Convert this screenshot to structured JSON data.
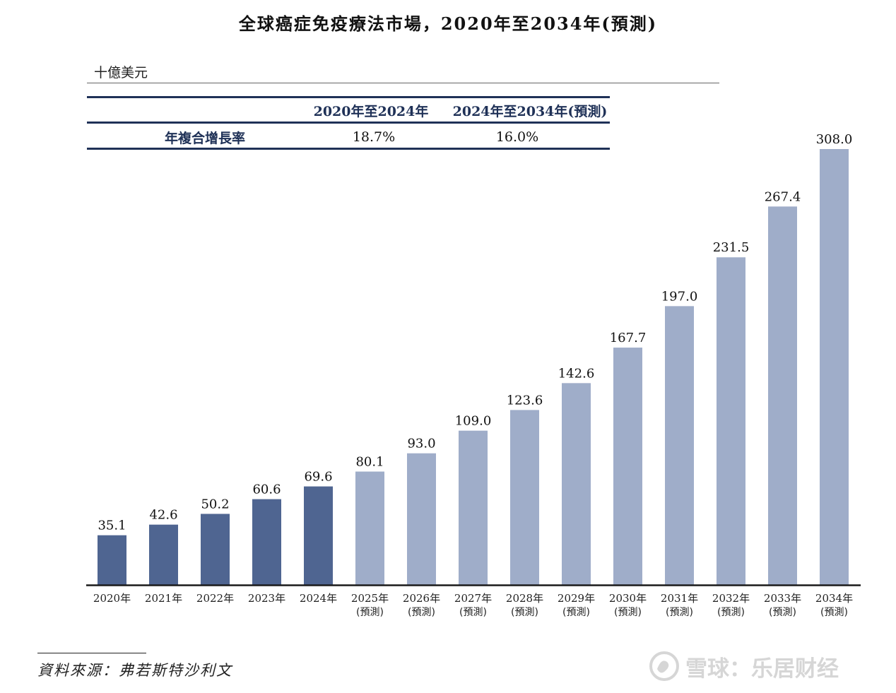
{
  "title": "全球癌症免疫療法市場，2020年至2034年(預測)",
  "unit": "十億美元",
  "cagr_table": {
    "headers": [
      "2020年至2024年",
      "2024年至2034年(預測)"
    ],
    "row_label": "年複合增長率",
    "values": [
      "18.7%",
      "16.0%"
    ]
  },
  "chart_data": {
    "type": "bar",
    "title": "全球癌症免疫療法市場，2020年至2034年(預測)",
    "ylabel": "十億美元",
    "xlabel": "",
    "categories": [
      "2020年",
      "2021年",
      "2022年",
      "2023年",
      "2024年",
      "2025年",
      "2026年",
      "2027年",
      "2028年",
      "2029年",
      "2030年",
      "2031年",
      "2032年",
      "2033年",
      "2034年"
    ],
    "category_sublabels": [
      "",
      "",
      "",
      "",
      "",
      "(預測)",
      "(預測)",
      "(預測)",
      "(預測)",
      "(預測)",
      "(預測)",
      "(預測)",
      "(預測)",
      "(預測)",
      "(預測)"
    ],
    "values": [
      35.1,
      42.6,
      50.2,
      60.6,
      69.6,
      80.1,
      93.0,
      109.0,
      123.6,
      142.6,
      167.7,
      197.0,
      231.5,
      267.4,
      308.0
    ],
    "value_labels": [
      "35.1",
      "42.6",
      "50.2",
      "60.6",
      "69.6",
      "80.1",
      "93.0",
      "109.0",
      "123.6",
      "142.6",
      "167.7",
      "197.0",
      "231.5",
      "267.4",
      "308.0"
    ],
    "forecast": [
      false,
      false,
      false,
      false,
      false,
      true,
      true,
      true,
      true,
      true,
      true,
      true,
      true,
      true,
      true
    ],
    "ylim": [
      0,
      308
    ],
    "grid": false,
    "colors": {
      "actual": "#4f6591",
      "forecast": "#9fadc9",
      "axis": "#1a1a1a"
    }
  },
  "source": "資料來源：弗若斯特沙利文",
  "watermark": {
    "icon": "snowball-logo-icon",
    "text": "雪球：乐居财经"
  }
}
